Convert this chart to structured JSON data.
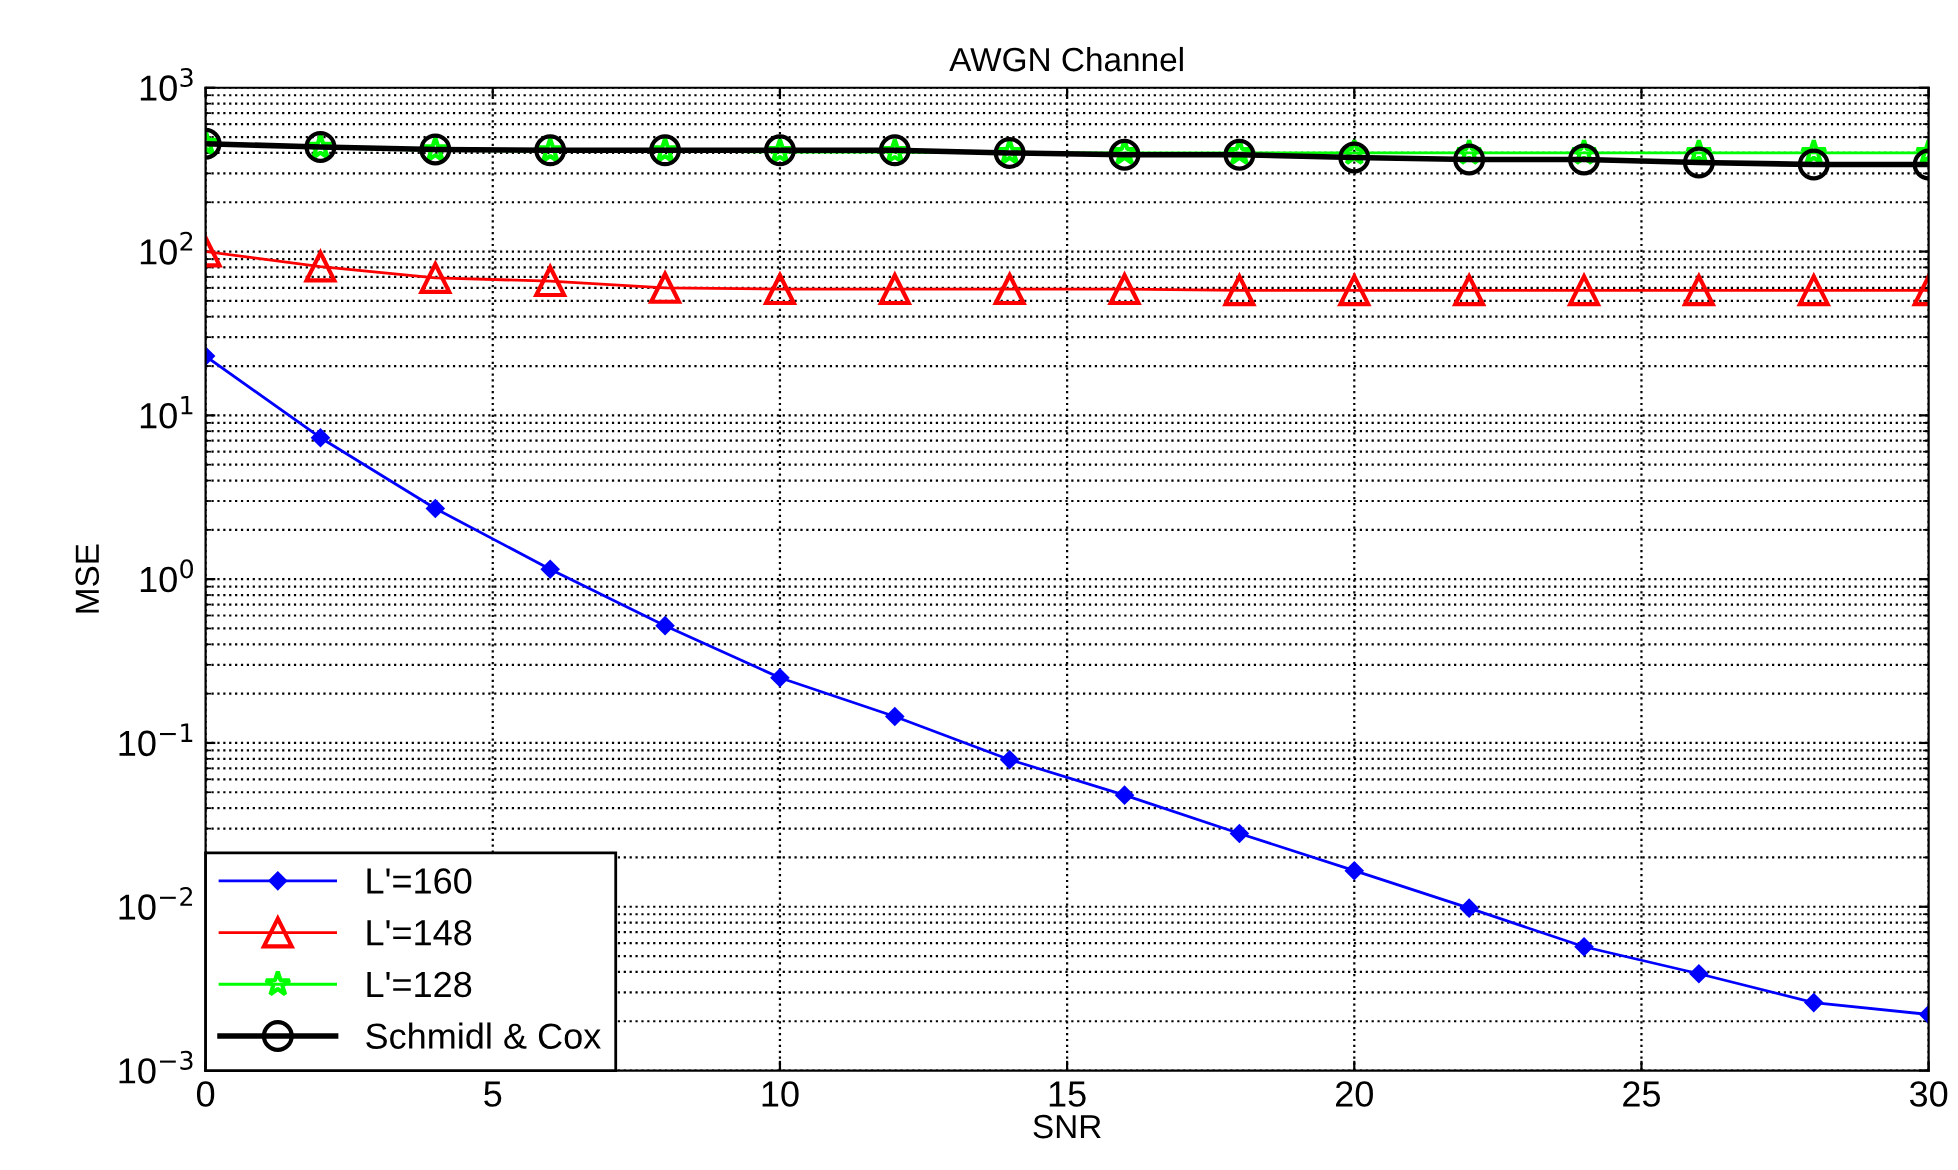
{
  "chart_data": {
    "type": "line",
    "title": "AWGN Channel",
    "xlabel": "SNR",
    "ylabel": "MSE",
    "log": "y",
    "grid": true,
    "legend": "bottom left",
    "x": [
      0,
      2,
      4,
      6,
      8,
      10,
      12,
      14,
      16,
      18,
      20,
      22,
      24,
      26,
      28,
      30
    ],
    "xlim": [
      0,
      30
    ],
    "xticks": [
      0,
      5,
      10,
      15,
      20,
      25,
      30
    ],
    "ylim": [
      0.001,
      1000
    ],
    "yticks": [
      {
        "value": 0.001,
        "label": "10$^{−3}$"
      },
      {
        "value": 0.01,
        "label": "10$^{−2}$"
      },
      {
        "value": 0.1,
        "label": "10$^{−1}$"
      },
      {
        "value": 1,
        "label": "10$^{0}$"
      },
      {
        "value": 10,
        "label": "10$^{1}$"
      },
      {
        "value": 100,
        "label": "10$^{2}$"
      },
      {
        "value": 1000,
        "label": "10$^{3}$"
      }
    ],
    "series": [
      {
        "name": "L'=160",
        "color": "#0000ff",
        "marker": "diamond",
        "values": [
          23,
          7.3,
          2.7,
          1.15,
          0.52,
          0.25,
          0.145,
          0.079,
          0.048,
          0.028,
          0.0166,
          0.0098,
          0.0057,
          0.0039,
          0.0026,
          0.0022
        ]
      },
      {
        "name": "L'=148",
        "color": "#ff0000",
        "marker": "triangle",
        "values": [
          100,
          81,
          69,
          66,
          60,
          59,
          59,
          59,
          59,
          58,
          58,
          58,
          58,
          58,
          58,
          58
        ]
      },
      {
        "name": "L'=128",
        "color": "#00ff00",
        "marker": "star",
        "values": [
          455,
          430,
          415,
          410,
          410,
          405,
          405,
          400,
          400,
          400,
          400,
          400,
          400,
          400,
          400,
          400
        ]
      },
      {
        "name": "Schmidl & Cox",
        "color": "#000000",
        "marker": "circle",
        "values": [
          455,
          435,
          420,
          415,
          415,
          415,
          415,
          400,
          390,
          390,
          375,
          365,
          365,
          350,
          340,
          340
        ]
      }
    ]
  }
}
